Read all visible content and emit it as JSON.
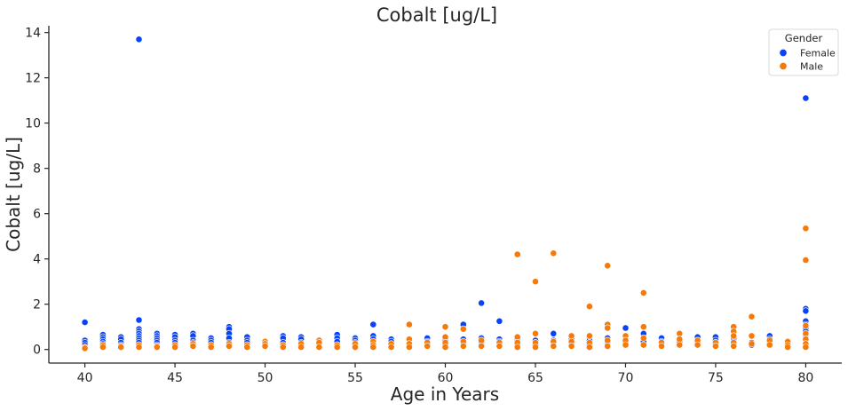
{
  "chart_data": {
    "type": "scatter",
    "title": "Cobalt [ug/L]",
    "xlabel": "Age in Years",
    "ylabel": "Cobalt [ug/L]",
    "xlim": [
      38,
      82
    ],
    "ylim": [
      -0.6,
      14.3
    ],
    "xticks": [
      40,
      45,
      50,
      55,
      60,
      65,
      70,
      75,
      80
    ],
    "yticks": [
      0,
      2,
      4,
      6,
      8,
      10,
      12,
      14
    ],
    "grid": false,
    "legend": {
      "title": "Gender",
      "placement": "top-right"
    },
    "series": [
      {
        "name": "Female",
        "color": "#0a43f5",
        "points": [
          [
            40,
            1.2
          ],
          [
            40,
            0.4
          ],
          [
            40,
            0.3
          ],
          [
            40,
            0.2
          ],
          [
            40,
            0.1
          ],
          [
            41,
            0.65
          ],
          [
            41,
            0.55
          ],
          [
            41,
            0.45
          ],
          [
            41,
            0.35
          ],
          [
            41,
            0.25
          ],
          [
            41,
            0.15
          ],
          [
            42,
            0.55
          ],
          [
            42,
            0.45
          ],
          [
            42,
            0.3
          ],
          [
            42,
            0.2
          ],
          [
            43,
            13.7
          ],
          [
            43,
            1.3
          ],
          [
            43,
            0.9
          ],
          [
            43,
            0.8
          ],
          [
            43,
            0.7
          ],
          [
            43,
            0.6
          ],
          [
            43,
            0.5
          ],
          [
            43,
            0.4
          ],
          [
            43,
            0.3
          ],
          [
            43,
            0.2
          ],
          [
            44,
            0.7
          ],
          [
            44,
            0.6
          ],
          [
            44,
            0.5
          ],
          [
            44,
            0.4
          ],
          [
            44,
            0.3
          ],
          [
            44,
            0.2
          ],
          [
            44,
            0.1
          ],
          [
            45,
            0.65
          ],
          [
            45,
            0.55
          ],
          [
            45,
            0.4
          ],
          [
            45,
            0.3
          ],
          [
            45,
            0.2
          ],
          [
            46,
            0.7
          ],
          [
            46,
            0.6
          ],
          [
            46,
            0.4
          ],
          [
            46,
            0.3
          ],
          [
            46,
            0.2
          ],
          [
            47,
            0.5
          ],
          [
            47,
            0.4
          ],
          [
            47,
            0.3
          ],
          [
            47,
            0.2
          ],
          [
            48,
            1.0
          ],
          [
            48,
            0.9
          ],
          [
            48,
            0.7
          ],
          [
            48,
            0.5
          ],
          [
            48,
            0.3
          ],
          [
            48,
            0.2
          ],
          [
            49,
            0.55
          ],
          [
            49,
            0.4
          ],
          [
            49,
            0.3
          ],
          [
            49,
            0.2
          ],
          [
            51,
            0.6
          ],
          [
            51,
            0.5
          ],
          [
            51,
            0.3
          ],
          [
            51,
            0.2
          ],
          [
            52,
            0.55
          ],
          [
            52,
            0.45
          ],
          [
            52,
            0.3
          ],
          [
            52,
            0.2
          ],
          [
            53,
            0.2
          ],
          [
            53,
            0.15
          ],
          [
            54,
            0.65
          ],
          [
            54,
            0.5
          ],
          [
            54,
            0.35
          ],
          [
            54,
            0.2
          ],
          [
            55,
            0.5
          ],
          [
            55,
            0.4
          ],
          [
            55,
            0.3
          ],
          [
            55,
            0.2
          ],
          [
            56,
            1.1
          ],
          [
            56,
            0.6
          ],
          [
            56,
            0.45
          ],
          [
            56,
            0.3
          ],
          [
            56,
            0.2
          ],
          [
            57,
            0.45
          ],
          [
            57,
            0.35
          ],
          [
            57,
            0.2
          ],
          [
            59,
            0.5
          ],
          [
            59,
            0.35
          ],
          [
            59,
            0.2
          ],
          [
            60,
            0.4
          ],
          [
            60,
            0.3
          ],
          [
            60,
            0.2
          ],
          [
            61,
            1.1
          ],
          [
            61,
            0.45
          ],
          [
            61,
            0.3
          ],
          [
            61,
            0.2
          ],
          [
            62,
            2.05
          ],
          [
            62,
            0.5
          ],
          [
            62,
            0.4
          ],
          [
            62,
            0.3
          ],
          [
            62,
            0.2
          ],
          [
            63,
            1.25
          ],
          [
            63,
            0.45
          ],
          [
            63,
            0.35
          ],
          [
            63,
            0.2
          ],
          [
            64,
            0.4
          ],
          [
            64,
            0.3
          ],
          [
            64,
            0.2
          ],
          [
            65,
            0.4
          ],
          [
            65,
            0.3
          ],
          [
            65,
            0.2
          ],
          [
            66,
            0.7
          ],
          [
            66,
            0.4
          ],
          [
            66,
            0.3
          ],
          [
            66,
            0.2
          ],
          [
            67,
            0.45
          ],
          [
            67,
            0.3
          ],
          [
            67,
            0.2
          ],
          [
            68,
            0.4
          ],
          [
            68,
            0.3
          ],
          [
            68,
            0.2
          ],
          [
            69,
            0.5
          ],
          [
            69,
            0.4
          ],
          [
            69,
            0.3
          ],
          [
            69,
            0.2
          ],
          [
            70,
            0.95
          ],
          [
            70,
            0.6
          ],
          [
            70,
            0.45
          ],
          [
            70,
            0.3
          ],
          [
            70,
            0.2
          ],
          [
            71,
            0.7
          ],
          [
            71,
            0.5
          ],
          [
            71,
            0.35
          ],
          [
            71,
            0.2
          ],
          [
            72,
            0.5
          ],
          [
            72,
            0.35
          ],
          [
            72,
            0.2
          ],
          [
            73,
            0.35
          ],
          [
            73,
            0.2
          ],
          [
            74,
            0.55
          ],
          [
            74,
            0.4
          ],
          [
            74,
            0.3
          ],
          [
            74,
            0.2
          ],
          [
            75,
            0.55
          ],
          [
            75,
            0.4
          ],
          [
            75,
            0.3
          ],
          [
            75,
            0.2
          ],
          [
            76,
            0.6
          ],
          [
            76,
            0.45
          ],
          [
            76,
            0.35
          ],
          [
            76,
            0.2
          ],
          [
            77,
            0.3
          ],
          [
            77,
            0.2
          ],
          [
            78,
            0.6
          ],
          [
            78,
            0.45
          ],
          [
            78,
            0.3
          ],
          [
            78,
            0.2
          ],
          [
            79,
            0.3
          ],
          [
            79,
            0.2
          ],
          [
            80,
            11.1
          ],
          [
            80,
            1.8
          ],
          [
            80,
            1.7
          ],
          [
            80,
            1.25
          ],
          [
            80,
            1.1
          ],
          [
            80,
            0.95
          ],
          [
            80,
            0.8
          ],
          [
            80,
            0.6
          ],
          [
            80,
            0.5
          ],
          [
            80,
            0.4
          ],
          [
            80,
            0.3
          ],
          [
            80,
            0.2
          ]
        ]
      },
      {
        "name": "Male",
        "color": "#f57a0a",
        "points": [
          [
            40,
            0.1
          ],
          [
            40,
            0.05
          ],
          [
            41,
            0.2
          ],
          [
            41,
            0.1
          ],
          [
            42,
            0.15
          ],
          [
            42,
            0.1
          ],
          [
            43,
            0.2
          ],
          [
            43,
            0.1
          ],
          [
            44,
            0.15
          ],
          [
            44,
            0.1
          ],
          [
            45,
            0.2
          ],
          [
            45,
            0.1
          ],
          [
            46,
            0.25
          ],
          [
            46,
            0.15
          ],
          [
            47,
            0.2
          ],
          [
            47,
            0.1
          ],
          [
            48,
            0.25
          ],
          [
            48,
            0.15
          ],
          [
            49,
            0.2
          ],
          [
            49,
            0.1
          ],
          [
            50,
            0.35
          ],
          [
            50,
            0.25
          ],
          [
            50,
            0.15
          ],
          [
            51,
            0.2
          ],
          [
            51,
            0.1
          ],
          [
            52,
            0.25
          ],
          [
            52,
            0.1
          ],
          [
            53,
            0.4
          ],
          [
            53,
            0.3
          ],
          [
            53,
            0.1
          ],
          [
            54,
            0.2
          ],
          [
            54,
            0.1
          ],
          [
            55,
            0.25
          ],
          [
            55,
            0.1
          ],
          [
            56,
            0.35
          ],
          [
            56,
            0.2
          ],
          [
            56,
            0.1
          ],
          [
            57,
            0.25
          ],
          [
            57,
            0.1
          ],
          [
            58,
            1.1
          ],
          [
            58,
            0.45
          ],
          [
            58,
            0.25
          ],
          [
            58,
            0.1
          ],
          [
            59,
            0.3
          ],
          [
            59,
            0.15
          ],
          [
            60,
            1.0
          ],
          [
            60,
            0.55
          ],
          [
            60,
            0.3
          ],
          [
            60,
            0.1
          ],
          [
            61,
            0.9
          ],
          [
            61,
            0.35
          ],
          [
            61,
            0.15
          ],
          [
            62,
            0.4
          ],
          [
            62,
            0.15
          ],
          [
            63,
            0.3
          ],
          [
            63,
            0.15
          ],
          [
            64,
            4.2
          ],
          [
            64,
            0.55
          ],
          [
            64,
            0.3
          ],
          [
            64,
            0.1
          ],
          [
            65,
            3.0
          ],
          [
            65,
            0.7
          ],
          [
            65,
            0.3
          ],
          [
            65,
            0.1
          ],
          [
            66,
            4.25
          ],
          [
            66,
            0.35
          ],
          [
            66,
            0.15
          ],
          [
            67,
            0.6
          ],
          [
            67,
            0.35
          ],
          [
            67,
            0.15
          ],
          [
            68,
            1.9
          ],
          [
            68,
            0.6
          ],
          [
            68,
            0.3
          ],
          [
            68,
            0.1
          ],
          [
            69,
            3.7
          ],
          [
            69,
            1.1
          ],
          [
            69,
            0.95
          ],
          [
            69,
            0.4
          ],
          [
            69,
            0.15
          ],
          [
            70,
            0.6
          ],
          [
            70,
            0.4
          ],
          [
            70,
            0.2
          ],
          [
            71,
            2.5
          ],
          [
            71,
            1.0
          ],
          [
            71,
            0.5
          ],
          [
            71,
            0.2
          ],
          [
            72,
            0.3
          ],
          [
            72,
            0.15
          ],
          [
            73,
            0.7
          ],
          [
            73,
            0.45
          ],
          [
            73,
            0.2
          ],
          [
            74,
            0.4
          ],
          [
            74,
            0.2
          ],
          [
            75,
            0.3
          ],
          [
            75,
            0.15
          ],
          [
            76,
            1.0
          ],
          [
            76,
            0.8
          ],
          [
            76,
            0.6
          ],
          [
            76,
            0.3
          ],
          [
            76,
            0.15
          ],
          [
            77,
            1.45
          ],
          [
            77,
            0.6
          ],
          [
            77,
            0.25
          ],
          [
            78,
            0.4
          ],
          [
            78,
            0.2
          ],
          [
            79,
            0.35
          ],
          [
            79,
            0.2
          ],
          [
            79,
            0.1
          ],
          [
            80,
            5.35
          ],
          [
            80,
            3.95
          ],
          [
            80,
            1.05
          ],
          [
            80,
            0.7
          ],
          [
            80,
            0.45
          ],
          [
            80,
            0.25
          ],
          [
            80,
            0.1
          ]
        ]
      }
    ]
  }
}
